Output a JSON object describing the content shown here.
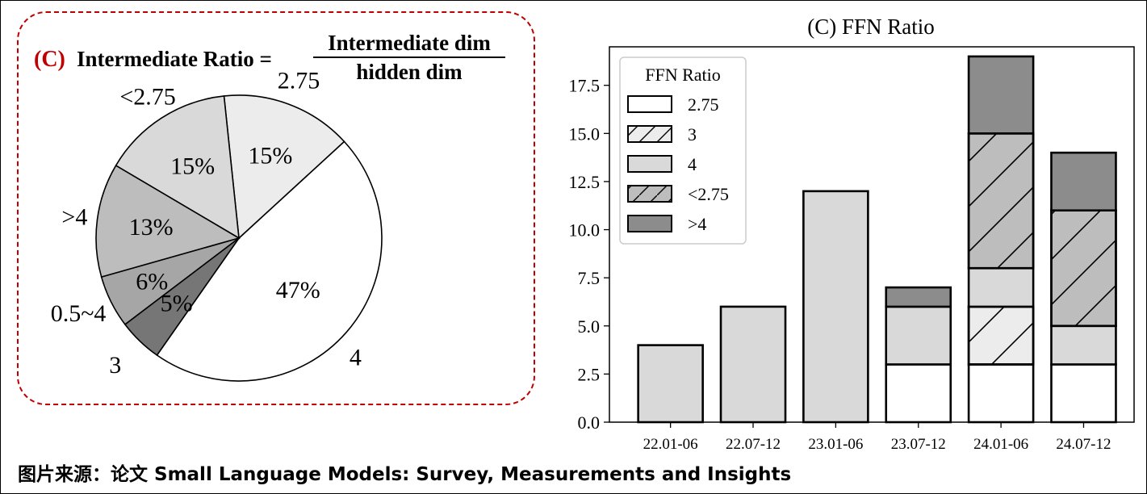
{
  "pie_title": {
    "label_c": "(C)",
    "label_main": "Intermediate Ratio =",
    "numerator": "Intermediate dim",
    "denominator": "hidden dim"
  },
  "caption": "图片来源：论文 Small Language Models: Survey, Measurements and Insights",
  "colors": {
    "accent_red": "#c00000",
    "ratio_2_75": "#ffffff",
    "ratio_3": "#ececec",
    "ratio_4": "#d9d9d9",
    "ratio_lt_2_75": "#bdbdbd",
    "ratio_gt_4": "#8c8c8c",
    "ratio_0_5_4": "#a6a6a6",
    "ratio_3_pie": "#767676"
  },
  "chart_data": [
    {
      "type": "pie",
      "slices": [
        {
          "label": "4",
          "pct_label": "47%",
          "value": 47,
          "color": "#ffffff"
        },
        {
          "label": "2.75",
          "pct_label": "15%",
          "value": 15,
          "color": "#ececec"
        },
        {
          "label": "<2.75",
          "pct_label": "15%",
          "value": 15,
          "color": "#d9d9d9"
        },
        {
          "label": ">4",
          "pct_label": "13%",
          "value": 13,
          "color": "#bdbdbd"
        },
        {
          "label": "0.5~4",
          "pct_label": "6%",
          "value": 6,
          "color": "#a6a6a6"
        },
        {
          "label": "3",
          "pct_label": "5%",
          "value": 5,
          "color": "#767676"
        }
      ]
    },
    {
      "type": "bar",
      "stacked": true,
      "title": "(C) FFN Ratio",
      "categories": [
        "22.01-06",
        "22.07-12",
        "23.01-06",
        "23.07-12",
        "24.01-06",
        "24.07-12"
      ],
      "ylim": [
        0,
        19.5
      ],
      "yticks": [
        "0.0",
        "2.5",
        "5.0",
        "7.5",
        "10.0",
        "12.5",
        "15.0",
        "17.5"
      ],
      "legend_title": "FFN Ratio",
      "legend_position": "top-left",
      "series": [
        {
          "name": "2.75",
          "values": [
            0,
            0,
            0,
            3,
            3,
            3
          ],
          "color": "#ffffff",
          "hatch": false
        },
        {
          "name": "3",
          "values": [
            0,
            0,
            0,
            0,
            3,
            0
          ],
          "color": "#ececec",
          "hatch": true
        },
        {
          "name": "4",
          "values": [
            4,
            6,
            12,
            3,
            2,
            2
          ],
          "color": "#d9d9d9",
          "hatch": false
        },
        {
          "name": "<2.75",
          "values": [
            0,
            0,
            0,
            0,
            7,
            6
          ],
          "color": "#bdbdbd",
          "hatch": true
        },
        {
          "name": ">4",
          "values": [
            0,
            0,
            0,
            1,
            4,
            3
          ],
          "color": "#8c8c8c",
          "hatch": false
        }
      ]
    }
  ]
}
